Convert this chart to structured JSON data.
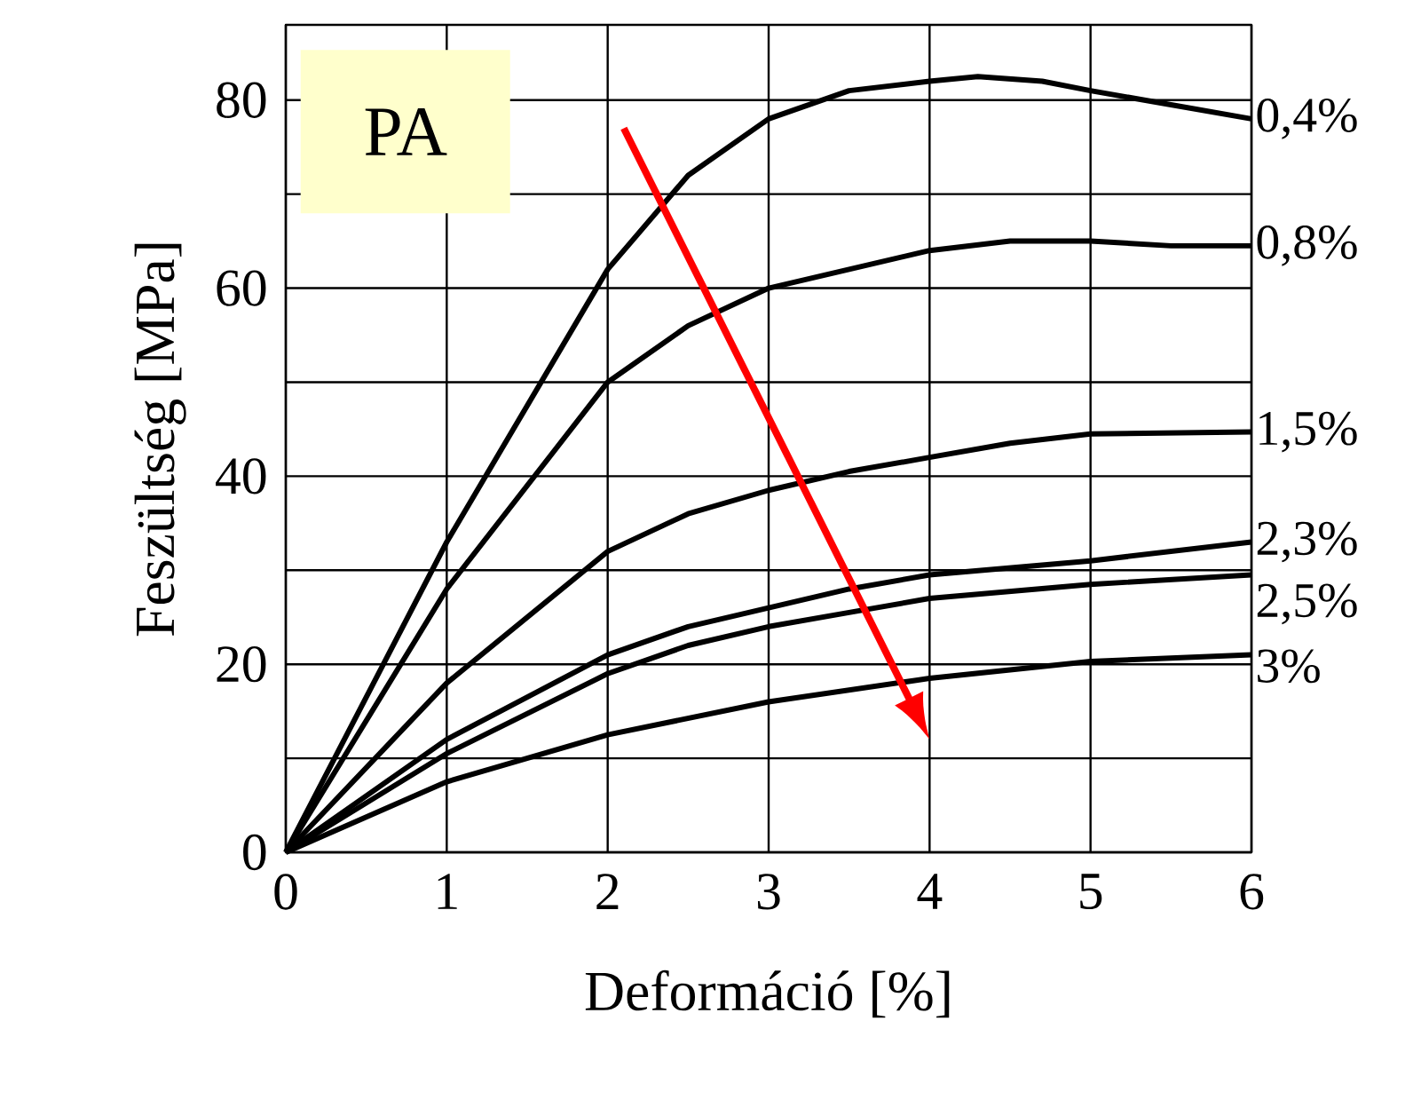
{
  "chart_data": {
    "type": "line",
    "xlabel": "Deformáció [%]",
    "ylabel": "Feszültség [MPa]",
    "annotations": [
      "PA"
    ],
    "xlim": [
      0,
      6
    ],
    "ylim": [
      0,
      88
    ],
    "xticks": [
      0,
      1,
      2,
      3,
      4,
      5,
      6
    ],
    "yticks": [
      0,
      {
        "value": 10,
        "label": null
      },
      20,
      {
        "value": 30,
        "label": null
      },
      40,
      {
        "value": 50,
        "label": null
      },
      60,
      {
        "value": 70,
        "label": null
      },
      80
    ],
    "grid": true,
    "legend": false,
    "marker": "none",
    "line_style": "solid",
    "series": [
      {
        "name": "0,4%",
        "color": "#000000",
        "x": [
          0,
          1,
          2,
          2.5,
          3,
          3.5,
          4,
          4.3,
          4.7,
          5,
          5.5,
          6
        ],
        "values": [
          0,
          33,
          62,
          72,
          78,
          81,
          82,
          82.5,
          82,
          81,
          79.5,
          78
        ]
      },
      {
        "name": "0,8%",
        "color": "#000000",
        "x": [
          0,
          1,
          2,
          2.5,
          3,
          3.5,
          4,
          4.5,
          5,
          5.5,
          6
        ],
        "values": [
          0,
          28,
          50,
          56,
          60,
          62,
          64,
          65,
          65,
          64.5,
          64.5
        ]
      },
      {
        "name": "1,5%",
        "color": "#000000",
        "x": [
          0,
          1,
          2,
          2.5,
          3,
          3.5,
          4,
          4.5,
          5,
          6
        ],
        "values": [
          0,
          18,
          32,
          36,
          38.5,
          40.5,
          42,
          43.5,
          44.5,
          44.7
        ]
      },
      {
        "name": "2,3%",
        "color": "#000000",
        "x": [
          0,
          1,
          2,
          2.5,
          3,
          3.5,
          4,
          5,
          6
        ],
        "values": [
          0,
          12,
          21,
          24,
          26,
          28,
          29.5,
          31,
          33
        ]
      },
      {
        "name": "2,5%",
        "color": "#000000",
        "x": [
          0,
          1,
          2,
          2.5,
          3,
          3.5,
          4,
          5,
          6
        ],
        "values": [
          0,
          10.5,
          19,
          22,
          24,
          25.5,
          27,
          28.5,
          29.5
        ]
      },
      {
        "name": "3%",
        "color": "#000000",
        "x": [
          0,
          1,
          2,
          3,
          4,
          5,
          6
        ],
        "values": [
          0,
          7.5,
          12.5,
          16,
          18.5,
          20.3,
          21
        ]
      }
    ]
  }
}
